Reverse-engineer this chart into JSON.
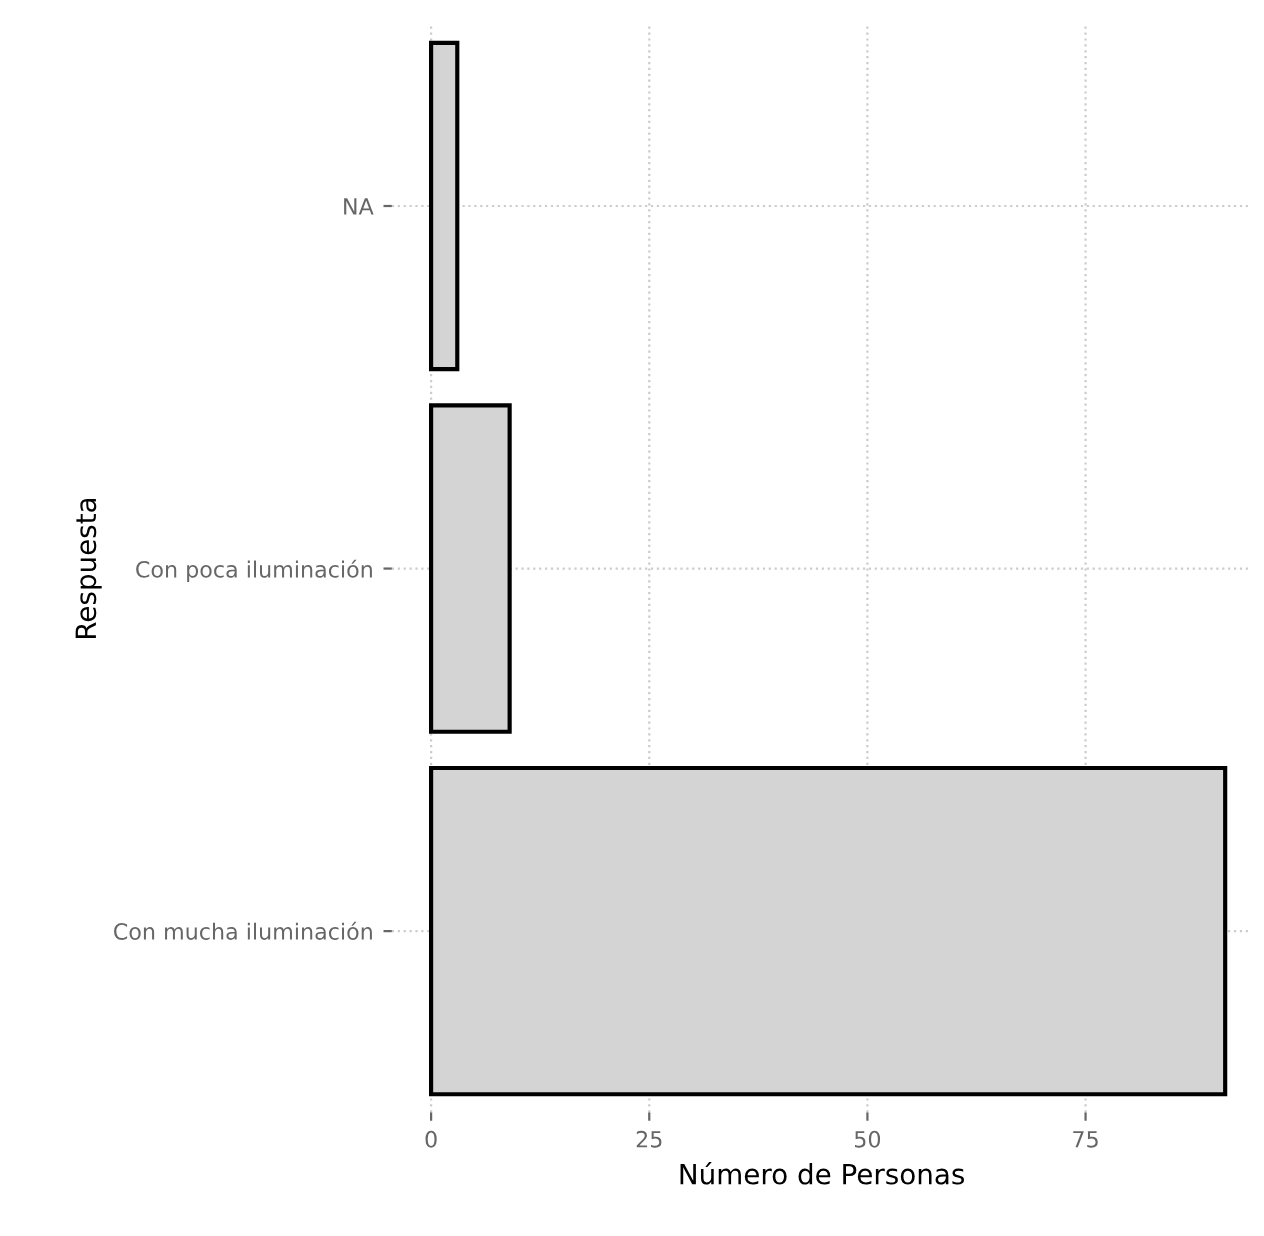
{
  "chart_data": {
    "type": "bar",
    "orientation": "horizontal",
    "xlabel": "Número de Personas",
    "ylabel": "Respuesta",
    "categories": [
      "NA",
      "Con poca iluminación",
      "Con mucha iluminación"
    ],
    "values": [
      3,
      9,
      91
    ],
    "color": "#d4d4d4",
    "xlim": [
      -4.5,
      94
    ],
    "xticks": [
      0,
      25,
      50,
      75
    ],
    "grid": true
  }
}
